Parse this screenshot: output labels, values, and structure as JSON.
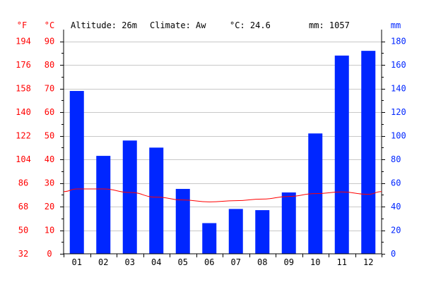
{
  "header": {
    "altitude": "Altitude: 26m",
    "climate": "Climate: Aw",
    "temp_mean": "°C: 24.6",
    "precip_total": "mm: 1057"
  },
  "units": {
    "fahrenheit": "°F",
    "celsius": "°C",
    "mm": "mm"
  },
  "colors": {
    "temp": "#ff0000",
    "precip": "#0026ff",
    "grid": "#c8c8c8",
    "axis": "#000000",
    "text": "#000000"
  },
  "chart_data": {
    "type": "bar",
    "categories": [
      "01",
      "02",
      "03",
      "04",
      "05",
      "06",
      "07",
      "08",
      "09",
      "10",
      "11",
      "12"
    ],
    "series": [
      {
        "kind": "bar",
        "axis": "right",
        "values": [
          138,
          83,
          96,
          90,
          55,
          26,
          38,
          37,
          52,
          102,
          168,
          172
        ]
      },
      {
        "kind": "line",
        "axis": "left",
        "values": [
          27.5,
          27.5,
          26.0,
          24.0,
          22.8,
          22.0,
          22.5,
          23.2,
          24.3,
          25.5,
          26.2,
          25.2
        ]
      }
    ],
    "ylim_celsius": [
      0,
      95
    ],
    "ylim_mm": [
      0,
      190
    ],
    "ylim_fahrenheit": [
      32,
      203
    ],
    "yticks_celsius": [
      "0",
      "10",
      "20",
      "30",
      "40",
      "50",
      "60",
      "70",
      "80",
      "90"
    ],
    "yticks_fahrenheit": [
      "32",
      "50",
      "68",
      "86",
      "104",
      "122",
      "140",
      "158",
      "176",
      "194"
    ],
    "yticks_mm": [
      "0",
      "20",
      "40",
      "60",
      "80",
      "100",
      "120",
      "140",
      "160",
      "180"
    ],
    "grid": true
  }
}
